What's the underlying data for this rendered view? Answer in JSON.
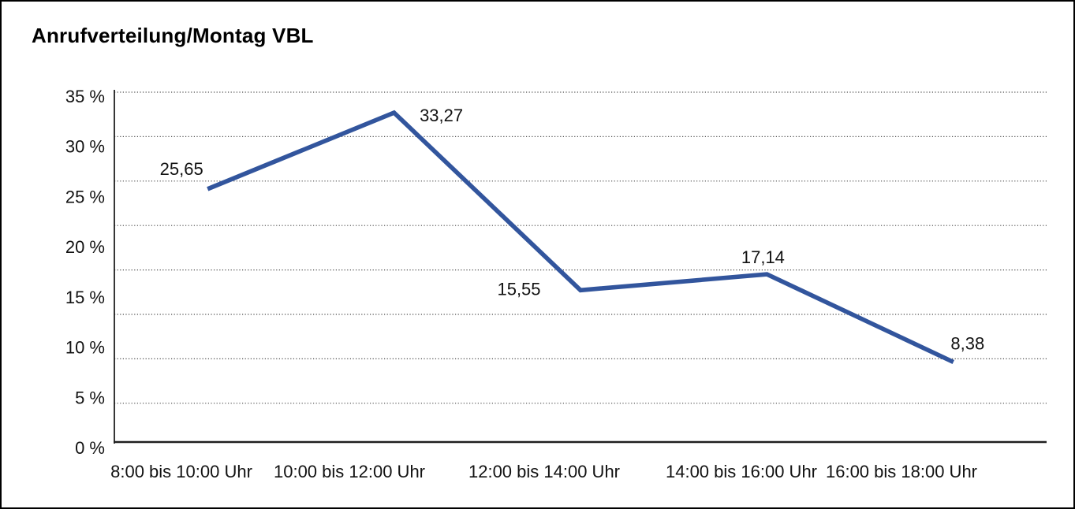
{
  "chart_data": {
    "type": "line",
    "title": "Anrufverteilung/Montag VBL",
    "categories": [
      "8:00 bis 10:00 Uhr",
      "10:00 bis 12:00 Uhr",
      "12:00 bis 14:00 Uhr",
      "14:00 bis 16:00 Uhr",
      "16:00 bis 18:00 Uhr"
    ],
    "values": [
      25.65,
      33.27,
      15.55,
      17.14,
      8.38
    ],
    "point_labels": [
      "25,65",
      "33,27",
      "15,55",
      "17,14",
      "8,38"
    ],
    "y_ticks": [
      "35 %",
      "30 %",
      "25 %",
      "20 %",
      "15 %",
      "10 %",
      "5 %",
      "0 %"
    ],
    "ylim": [
      0,
      35
    ],
    "y_tick_step_percent": 5,
    "xlabel": "",
    "ylabel": "",
    "grid": "horizontal-dotted",
    "legend": "none",
    "line_color": "#32559d",
    "text_color": "#121212",
    "grid_color": "#4a4a4a",
    "axis_color": "#1f1f1f",
    "background": "#ffffff",
    "border_color": "#000000"
  }
}
